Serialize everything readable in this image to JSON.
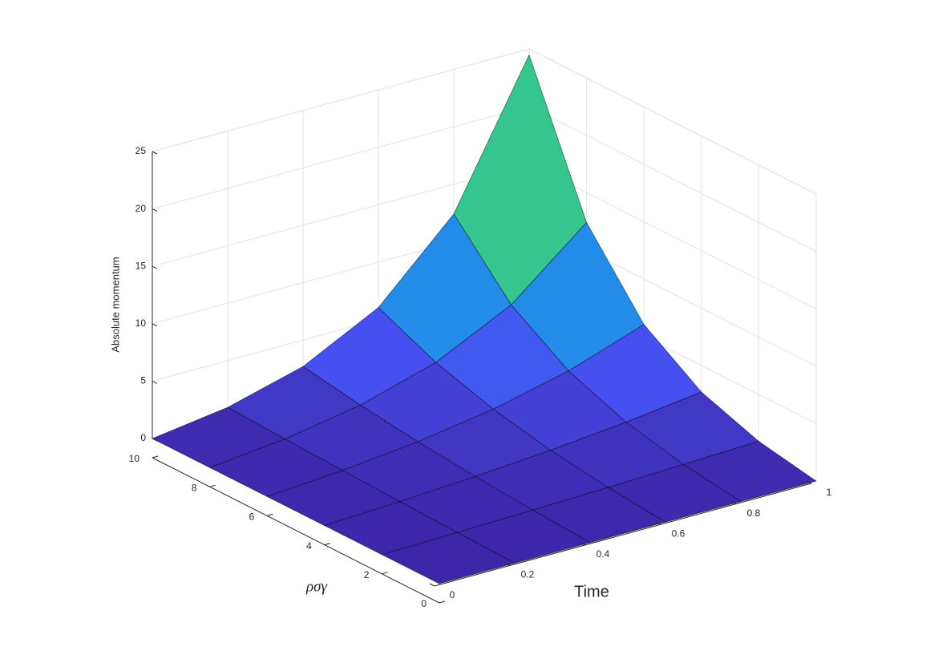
{
  "chart_data": {
    "type": "surface",
    "x_label": "Time",
    "y_label": "ρσγ",
    "z_label": "Absolute momentum",
    "x": [
      0,
      0.2,
      0.4,
      0.6,
      0.8,
      1
    ],
    "y": [
      0,
      2,
      4,
      6,
      8,
      10
    ],
    "z": [
      [
        0,
        0,
        0,
        0,
        0,
        0
      ],
      [
        0,
        0.14,
        0.3,
        0.49,
        0.7,
        0.93
      ],
      [
        0,
        0.3,
        0.7,
        1.2,
        1.86,
        2.7
      ],
      [
        0,
        0.49,
        1.2,
        2.25,
        3.79,
        6.05
      ],
      [
        0,
        0.7,
        1.86,
        3.79,
        7.02,
        12.41
      ],
      [
        0,
        0.93,
        2.7,
        6.05,
        12.41,
        24.47
      ]
    ],
    "xlim": [
      0,
      1
    ],
    "ylim": [
      0,
      10
    ],
    "zlim": [
      0,
      25
    ],
    "xticks": [
      0,
      0.2,
      0.4,
      0.6,
      0.8,
      1
    ],
    "yticks": [
      0,
      2,
      4,
      6,
      8,
      10
    ],
    "zticks": [
      0,
      5,
      10,
      15,
      20,
      25
    ],
    "grid": true,
    "colormap": "parula",
    "edge_color": "#000000"
  }
}
